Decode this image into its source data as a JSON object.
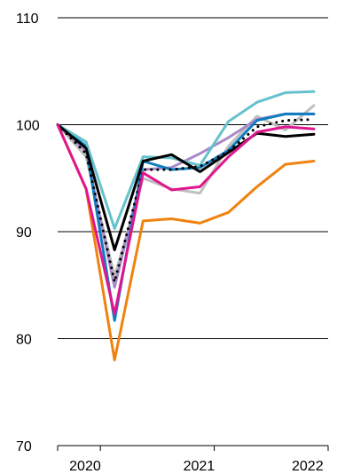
{
  "chart_data": {
    "type": "line",
    "title": "",
    "xlabel": "",
    "ylabel": "",
    "ylim": [
      70,
      110
    ],
    "yticks": [
      70,
      80,
      90,
      100,
      110
    ],
    "xticks": [
      {
        "label": "2020",
        "x": 1.5
      },
      {
        "label": "2021",
        "x": 5.5
      },
      {
        "label": "2022",
        "x": 9.5
      }
    ],
    "xlim": [
      0,
      9.5
    ],
    "x": [
      0,
      1,
      2,
      3,
      4,
      5,
      6,
      7,
      8,
      9
    ],
    "grid": "horizontal",
    "legend": "none",
    "series": [
      {
        "color": "#f0820f",
        "dashed": false,
        "values": [
          100.0,
          94.0,
          78.0,
          91.0,
          91.2,
          90.8,
          91.8,
          94.2,
          96.3,
          96.6
        ]
      },
      {
        "color": "#bfbfbf",
        "dashed": false,
        "values": [
          100.0,
          97.0,
          85.8,
          95.0,
          94.0,
          93.6,
          98.0,
          100.8,
          99.5,
          101.8
        ]
      },
      {
        "color": "#a88ac8",
        "dashed": false,
        "values": [
          100.0,
          97.5,
          84.8,
          95.8,
          96.0,
          97.3,
          98.8,
          100.5,
          101.0,
          101.0
        ]
      },
      {
        "color": "#0f7cc0",
        "dashed": false,
        "values": [
          100.0,
          98.0,
          81.7,
          96.6,
          95.8,
          96.0,
          97.6,
          100.4,
          101.0,
          101.0
        ]
      },
      {
        "color": "#65c2cc",
        "dashed": false,
        "values": [
          100.0,
          98.4,
          90.3,
          97.0,
          96.9,
          96.2,
          100.3,
          102.1,
          103.0,
          103.1
        ]
      },
      {
        "color": "#000000",
        "dashed": false,
        "values": [
          100.0,
          97.8,
          88.3,
          96.6,
          97.2,
          95.6,
          97.4,
          99.2,
          98.9,
          99.1
        ]
      },
      {
        "color": "#000000",
        "dashed": true,
        "values": [
          100.0,
          97.3,
          85.3,
          95.8,
          95.8,
          96.1,
          97.5,
          99.8,
          100.4,
          100.5
        ]
      },
      {
        "color": "#e0168c",
        "dashed": false,
        "values": [
          100.0,
          94.0,
          82.3,
          95.5,
          93.9,
          94.2,
          97.0,
          99.3,
          99.8,
          99.6
        ]
      }
    ]
  }
}
